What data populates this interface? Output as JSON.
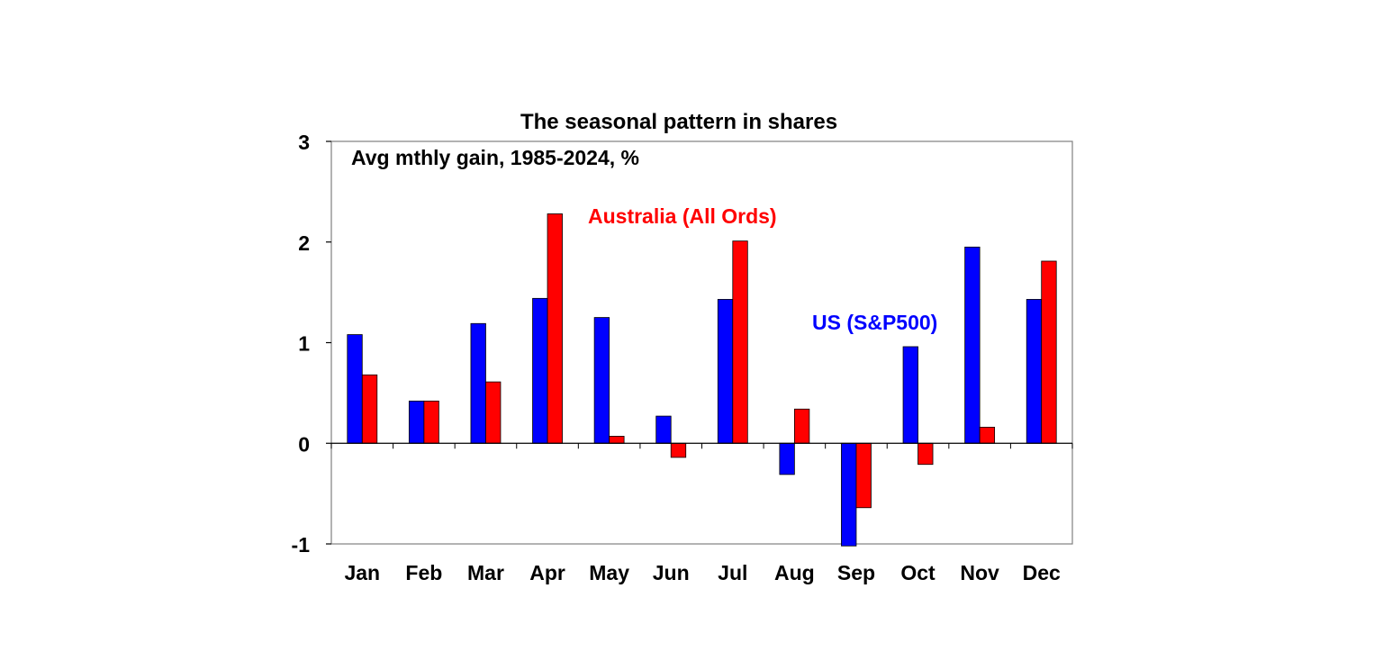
{
  "chart_data": {
    "type": "bar",
    "title": "The seasonal pattern in shares",
    "subtitle": "Avg mthly gain, 1985-2024, %",
    "xlabel": "",
    "ylabel": "",
    "ylim": [
      -1,
      3
    ],
    "yticks": [
      "3",
      "2",
      "1",
      "0",
      "-1"
    ],
    "ytick_values": [
      3,
      2,
      1,
      0,
      -1
    ],
    "grid": false,
    "categories": [
      "Jan",
      "Feb",
      "Mar",
      "Apr",
      "May",
      "Jun",
      "Jul",
      "Aug",
      "Sep",
      "Oct",
      "Nov",
      "Dec"
    ],
    "series": [
      {
        "name": "US (S&P500)",
        "color": "#0000ff",
        "values": [
          1.08,
          0.42,
          1.19,
          1.44,
          1.25,
          0.27,
          1.43,
          -0.31,
          -1.02,
          0.96,
          1.95,
          1.43
        ]
      },
      {
        "name": "Australia (All Ords)",
        "color": "#ff0000",
        "values": [
          0.68,
          0.42,
          0.61,
          2.28,
          0.07,
          -0.14,
          2.01,
          0.34,
          -0.64,
          -0.21,
          0.16,
          1.81
        ]
      }
    ],
    "annotations": [
      {
        "text": "Australia (All Ords)",
        "color": "#ff0000"
      },
      {
        "text": "US (S&P500)",
        "color": "#0000ff"
      }
    ]
  }
}
